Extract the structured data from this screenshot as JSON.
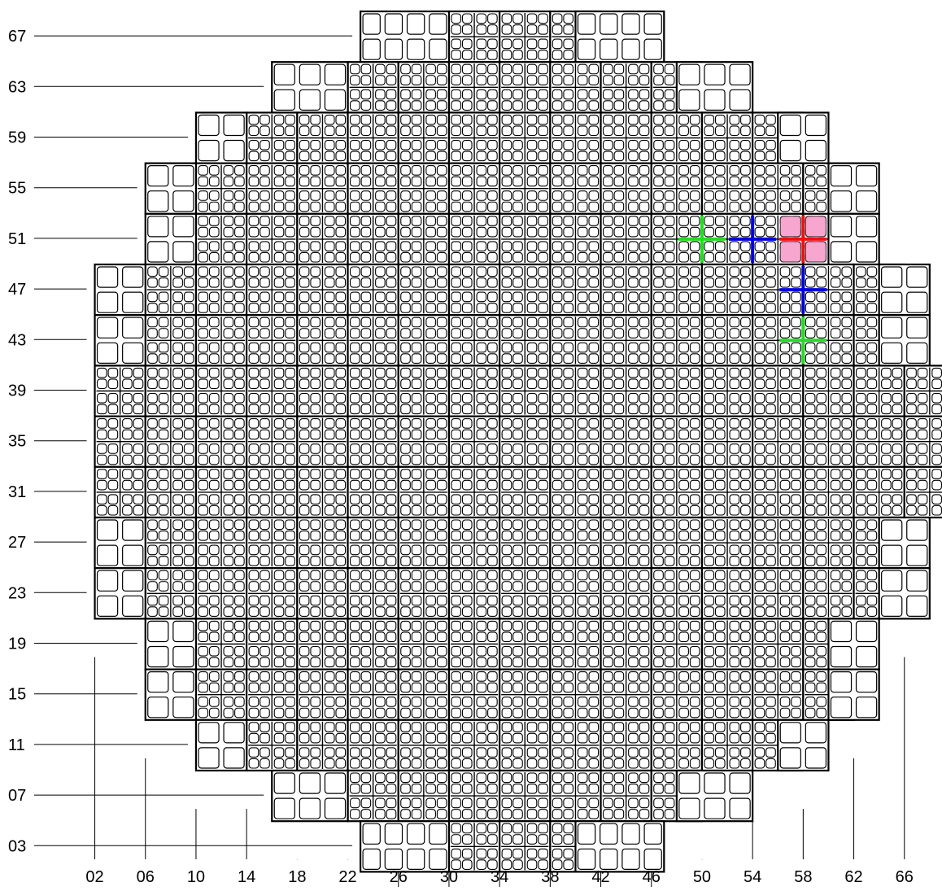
{
  "diagram": {
    "row_labels": [
      "67",
      "63",
      "59",
      "55",
      "51",
      "47",
      "43",
      "39",
      "35",
      "31",
      "27",
      "23",
      "19",
      "15",
      "11",
      "07",
      "03"
    ],
    "column_labels": [
      "02",
      "06",
      "10",
      "14",
      "18",
      "22",
      "26",
      "30",
      "34",
      "38",
      "42",
      "46",
      "50",
      "54",
      "58",
      "62",
      "66"
    ],
    "rows": [
      {
        "label": "67",
        "cols": [
          [
            30,
            39
          ]
        ],
        "small": [
          [
            23,
            29
          ],
          [
            40,
            46
          ]
        ]
      },
      {
        "label": "63",
        "cols": [
          [
            22,
            47
          ]
        ],
        "small": [
          [
            16,
            21
          ],
          [
            48,
            53
          ]
        ]
      },
      {
        "label": "59",
        "cols": [
          [
            14,
            55
          ]
        ],
        "small": [
          [
            10,
            13
          ],
          [
            56,
            59
          ]
        ]
      },
      {
        "label": "55",
        "cols": [
          [
            10,
            59
          ]
        ],
        "small": [
          [
            6,
            9
          ],
          [
            60,
            63
          ]
        ]
      },
      {
        "label": "51",
        "cols": [
          [
            10,
            59
          ]
        ],
        "small": [
          [
            6,
            9
          ],
          [
            60,
            63
          ]
        ]
      },
      {
        "label": "47",
        "cols": [
          [
            6,
            63
          ]
        ],
        "small": [
          [
            2,
            5
          ],
          [
            64,
            67
          ]
        ]
      },
      {
        "label": "43",
        "cols": [
          [
            6,
            63
          ]
        ],
        "small": [
          [
            2,
            5
          ],
          [
            64,
            67
          ]
        ]
      },
      {
        "label": "39",
        "cols": [
          [
            2,
            67
          ]
        ],
        "small": []
      },
      {
        "label": "35",
        "cols": [
          [
            2,
            67
          ]
        ],
        "small": []
      },
      {
        "label": "31",
        "cols": [
          [
            2,
            67
          ]
        ],
        "small": []
      },
      {
        "label": "27",
        "cols": [
          [
            6,
            63
          ]
        ],
        "small": [
          [
            2,
            5
          ],
          [
            64,
            67
          ]
        ]
      },
      {
        "label": "23",
        "cols": [
          [
            6,
            63
          ]
        ],
        "small": [
          [
            2,
            5
          ],
          [
            64,
            67
          ]
        ]
      },
      {
        "label": "19",
        "cols": [
          [
            10,
            59
          ]
        ],
        "small": [
          [
            6,
            9
          ],
          [
            60,
            63
          ]
        ]
      },
      {
        "label": "15",
        "cols": [
          [
            10,
            59
          ]
        ],
        "small": [
          [
            6,
            9
          ],
          [
            60,
            63
          ]
        ]
      },
      {
        "label": "11",
        "cols": [
          [
            14,
            55
          ]
        ],
        "small": [
          [
            10,
            13
          ],
          [
            56,
            59
          ]
        ]
      },
      {
        "label": "07",
        "cols": [
          [
            22,
            47
          ]
        ],
        "small": [
          [
            16,
            21
          ],
          [
            48,
            53
          ]
        ]
      },
      {
        "label": "03",
        "cols": [
          [
            30,
            39
          ]
        ],
        "small": [
          [
            23,
            29
          ],
          [
            40,
            46
          ]
        ]
      }
    ],
    "markers": [
      {
        "col": "50",
        "row": "51",
        "color": "#22dd22",
        "fill": ""
      },
      {
        "col": "54",
        "row": "51",
        "color": "#0000dd",
        "fill": ""
      },
      {
        "col": "58",
        "row": "51",
        "color": "#ee1111",
        "fill": "#f7a6cf"
      },
      {
        "col": "58",
        "row": "47",
        "color": "#0000dd",
        "fill": ""
      },
      {
        "col": "58",
        "row": "43",
        "color": "#22dd22",
        "fill": ""
      }
    ],
    "colors": {
      "line": "#000000",
      "cell_fill": "#ffffff",
      "background": "#ffffff"
    }
  }
}
